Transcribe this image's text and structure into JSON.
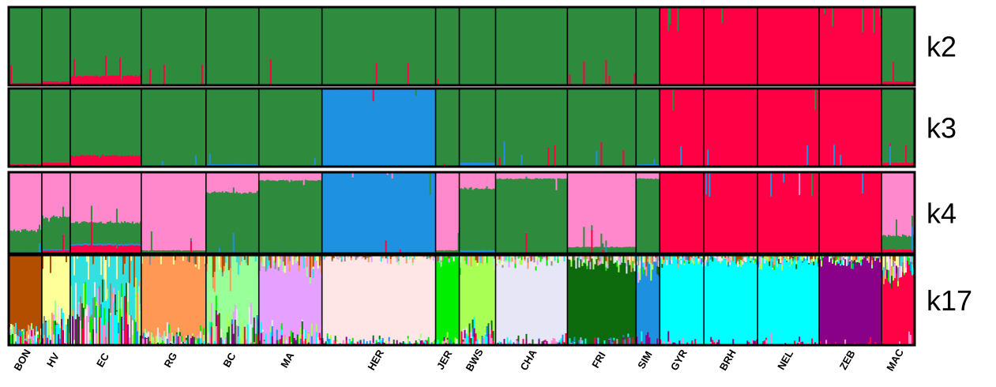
{
  "chart_data": {
    "type": "bar",
    "subtype": "stacked-100-percent-structure-plot",
    "categories": [
      "BON",
      "HV",
      "EC",
      "RG",
      "BC",
      "MA",
      "HER",
      "JER",
      "BWS",
      "CHA",
      "FRI",
      "SIM",
      "GYR",
      "BRH",
      "NEL",
      "ZEB",
      "MAC"
    ],
    "group_widths": [
      42,
      36,
      90,
      82,
      67,
      80,
      144,
      30,
      46,
      91,
      87,
      30,
      56,
      68,
      78,
      79,
      42
    ],
    "panels": [
      {
        "label": "k2",
        "cluster_colors": [
          "#2e8b3e",
          "#ff0044"
        ],
        "groups": [
          [
            0.97,
            0.03
          ],
          [
            0.95,
            0.05
          ],
          [
            0.88,
            0.12
          ],
          [
            0.99,
            0.01
          ],
          [
            0.99,
            0.01
          ],
          [
            0.99,
            0.01
          ],
          [
            1.0,
            0.0
          ],
          [
            1.0,
            0.0
          ],
          [
            0.99,
            0.01
          ],
          [
            1.0,
            0.0
          ],
          [
            0.99,
            0.01
          ],
          [
            0.99,
            0.01
          ],
          [
            0.0,
            1.0
          ],
          [
            0.0,
            1.0
          ],
          [
            0.0,
            1.0
          ],
          [
            0.0,
            1.0
          ],
          [
            0.95,
            0.05
          ]
        ]
      },
      {
        "label": "k3",
        "cluster_colors": [
          "#2e8b3e",
          "#ff0044",
          "#1e90e0"
        ],
        "groups": [
          [
            0.97,
            0.02,
            0.01
          ],
          [
            0.95,
            0.04,
            0.01
          ],
          [
            0.86,
            0.12,
            0.02
          ],
          [
            0.98,
            0.0,
            0.02
          ],
          [
            0.97,
            0.0,
            0.03
          ],
          [
            0.98,
            0.0,
            0.02
          ],
          [
            0.02,
            0.0,
            0.98
          ],
          [
            0.99,
            0.0,
            0.01
          ],
          [
            0.95,
            0.0,
            0.05
          ],
          [
            0.99,
            0.0,
            0.01
          ],
          [
            0.99,
            0.0,
            0.01
          ],
          [
            0.97,
            0.0,
            0.03
          ],
          [
            0.0,
            1.0,
            0.0
          ],
          [
            0.0,
            1.0,
            0.0
          ],
          [
            0.0,
            1.0,
            0.0
          ],
          [
            0.0,
            1.0,
            0.0
          ],
          [
            0.95,
            0.05,
            0.0
          ]
        ]
      },
      {
        "label": "k4",
        "cluster_colors": [
          "#ff88cc",
          "#2e8b3e",
          "#1e90e0",
          "#ff0044"
        ],
        "groups": [
          [
            0.72,
            0.26,
            0.01,
            0.01
          ],
          [
            0.55,
            0.4,
            0.01,
            0.04
          ],
          [
            0.62,
            0.26,
            0.02,
            0.1
          ],
          [
            0.96,
            0.03,
            0.01,
            0.0
          ],
          [
            0.25,
            0.73,
            0.02,
            0.0
          ],
          [
            0.1,
            0.88,
            0.02,
            0.0
          ],
          [
            0.01,
            0.01,
            0.98,
            0.0
          ],
          [
            0.96,
            0.03,
            0.01,
            0.0
          ],
          [
            0.2,
            0.76,
            0.04,
            0.0
          ],
          [
            0.08,
            0.91,
            0.01,
            0.0
          ],
          [
            0.92,
            0.07,
            0.01,
            0.0
          ],
          [
            0.08,
            0.9,
            0.02,
            0.0
          ],
          [
            0.0,
            0.0,
            0.0,
            1.0
          ],
          [
            0.0,
            0.0,
            0.0,
            1.0
          ],
          [
            0.0,
            0.0,
            0.0,
            1.0
          ],
          [
            0.0,
            0.0,
            0.0,
            1.0
          ],
          [
            0.78,
            0.17,
            0.0,
            0.05
          ]
        ]
      },
      {
        "label": "k17",
        "cluster_colors": [
          "#b34d00",
          "#ffff99",
          "#33e0e0",
          "#8c8c8c",
          "#ff9955",
          "#99ff99",
          "#e6a0ff",
          "#ffe6e6",
          "#00ee00",
          "#aaff55",
          "#e6e6f7",
          "#0d6b0d",
          "#1e90e0",
          "#00ffff",
          "#880088",
          "#ff0044",
          "#ff88cc"
        ],
        "groups": [
          {
            "main": 0,
            "share": 0.86
          },
          {
            "main": 1,
            "share": 0.7
          },
          {
            "main": 2,
            "share": 0.48
          },
          {
            "main": 4,
            "share": 0.88
          },
          {
            "main": 5,
            "share": 0.68
          },
          {
            "main": 6,
            "share": 0.82
          },
          {
            "main": 7,
            "share": 0.94
          },
          {
            "main": 8,
            "share": 0.93
          },
          {
            "main": 9,
            "share": 0.85
          },
          {
            "main": 10,
            "share": 0.92
          },
          {
            "main": 11,
            "share": 0.9
          },
          {
            "main": 12,
            "share": 0.84
          },
          {
            "main": 13,
            "share": 0.93
          },
          {
            "main": 13,
            "share": 0.93
          },
          {
            "main": 13,
            "share": 0.92
          },
          {
            "main": 14,
            "share": 0.93
          },
          {
            "main": 15,
            "share": 0.8
          }
        ]
      }
    ],
    "ylim": [
      0,
      1
    ],
    "grid": false,
    "legend": "none"
  }
}
